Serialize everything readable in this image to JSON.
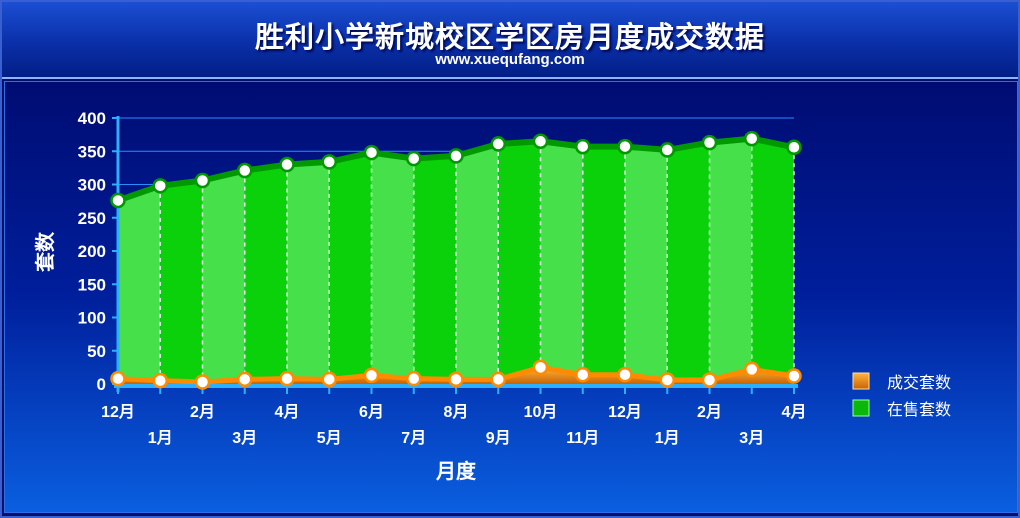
{
  "header": {
    "title": "胜利小学新城校区学区房月度成交数据",
    "subtitle": "www.xuequfang.com"
  },
  "colors": {
    "supply": "#0bd10b",
    "supply_dark": "#009a00",
    "supply_light": "#45e04a",
    "sold": "#ff8c00",
    "marker_fill": "#ffffff"
  },
  "chart_data": {
    "type": "area",
    "title": "胜利小学新城校区学区房月度成交数据",
    "xlabel": "月度",
    "ylabel": "套数",
    "ylim": [
      0,
      400
    ],
    "yticks": [
      0,
      50,
      100,
      150,
      200,
      250,
      300,
      350,
      400
    ],
    "categories": [
      "12月",
      "1月",
      "2月",
      "3月",
      "4月",
      "5月",
      "6月",
      "7月",
      "8月",
      "9月",
      "10月",
      "11月",
      "12月",
      "1月",
      "2月",
      "3月",
      "4月"
    ],
    "grid": true,
    "legend": "right",
    "series": [
      {
        "name": "成交套数",
        "color": "#ff8c00",
        "values": [
          8,
          5,
          3,
          7,
          8,
          7,
          13,
          8,
          7,
          7,
          25,
          14,
          14,
          6,
          6,
          22,
          12
        ]
      },
      {
        "name": "在售套数",
        "color": "#0bd10b",
        "values": [
          276,
          298,
          306,
          321,
          330,
          334,
          348,
          339,
          343,
          361,
          365,
          357,
          357,
          352,
          363,
          369,
          356
        ]
      }
    ]
  }
}
